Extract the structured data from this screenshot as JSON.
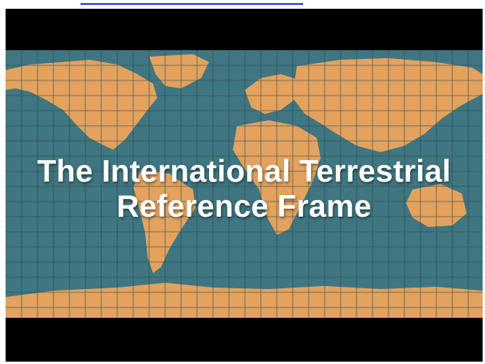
{
  "page": {
    "top_link_text": ""
  },
  "video": {
    "title_line1": "The International Terrestrial",
    "title_line2": "Reference Frame"
  },
  "colors": {
    "ocean": "#3f7681",
    "land": "#e3a25d",
    "grid": "#2d4a4f",
    "letterbox": "#000000",
    "link_underline": "#2a35d6"
  }
}
